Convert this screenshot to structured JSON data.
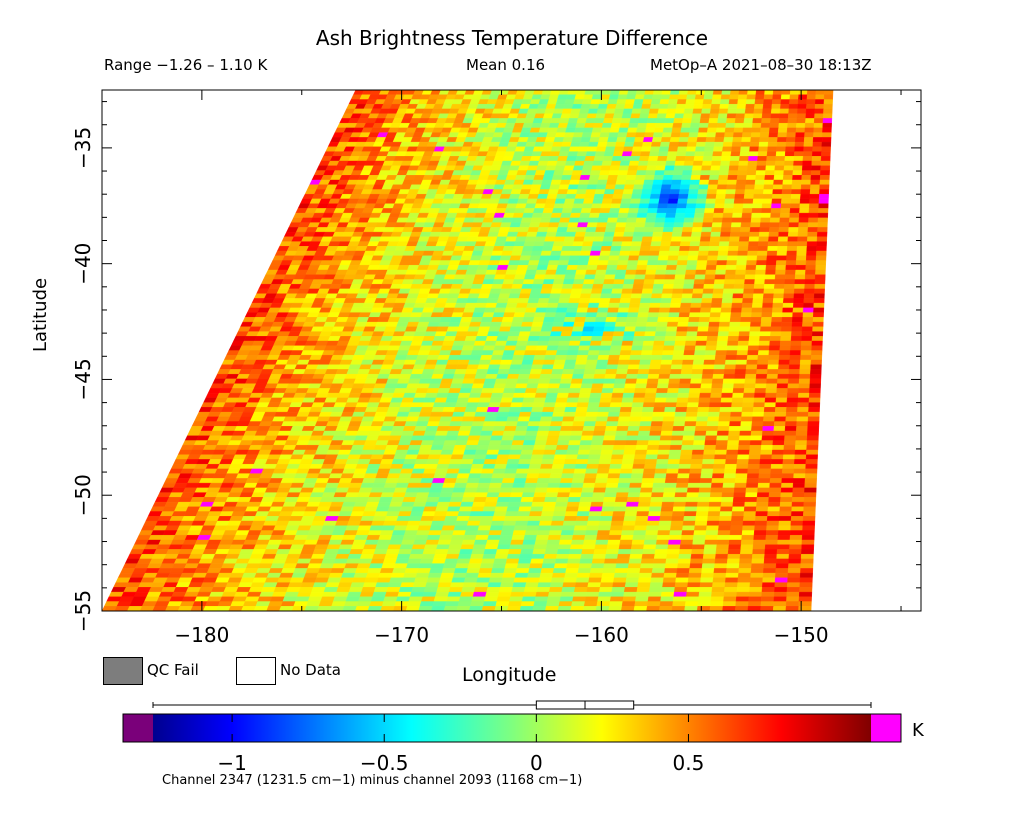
{
  "chart_data": {
    "type": "heatmap",
    "title": "Ash Brightness Temperature Difference",
    "subtitle_range": "Range −1.26 – 1.10 K",
    "subtitle_mean": "Mean 0.16",
    "subtitle_satellite": "MetOp–A 2021–08–30 18:13Z",
    "xlabel": "Longitude",
    "ylabel": "Latitude",
    "xlim": [
      -185,
      -144
    ],
    "ylim": [
      -55,
      -32.5
    ],
    "x_ticks": [
      -180,
      -170,
      -160,
      -150
    ],
    "x_tick_labels": [
      "−180",
      "−170",
      "−160",
      "−150"
    ],
    "y_ticks": [
      -35,
      -40,
      -45,
      -50,
      -55
    ],
    "y_tick_labels": [
      "−35",
      "−40",
      "−45",
      "−50",
      "−55"
    ],
    "swath": {
      "top_edge_lon": [
        -172.3,
        -148.4
      ],
      "bottom_edge_lon": [
        -185,
        -149.5
      ]
    },
    "value_range": [
      -1.26,
      1.1
    ],
    "mean": 0.16,
    "regions": [
      {
        "name": "cool-anomaly",
        "lon": -156.5,
        "lat": -37.2,
        "value": -1.0
      },
      {
        "name": "cool-band",
        "lon": -160.5,
        "lat": -42.8,
        "value": -0.55
      },
      {
        "name": "hot-spot",
        "lon": -148.5,
        "lat": -37.3,
        "value": 1.1
      }
    ],
    "colorbar": {
      "unit": "K",
      "min": -1.26,
      "max": 1.1,
      "ticks": [
        -1,
        -0.5,
        0,
        0.5
      ],
      "tick_labels": [
        "−1",
        "−0.5",
        "0",
        "0.5"
      ],
      "boxplot": {
        "q1": 0.0,
        "median": 0.16,
        "q3": 0.32,
        "whisker_low": -1.26,
        "whisker_high": 1.1
      },
      "under_color": "#7a007a",
      "over_color": "#ff00ff"
    },
    "legend": [
      {
        "label": "QC Fail",
        "color": "#7d7d7d"
      },
      {
        "label": "No Data",
        "color": "#ffffff"
      }
    ],
    "footnote": "Channel 2347 (1231.5 cm−1) minus channel 2093 (1168 cm−1)"
  }
}
